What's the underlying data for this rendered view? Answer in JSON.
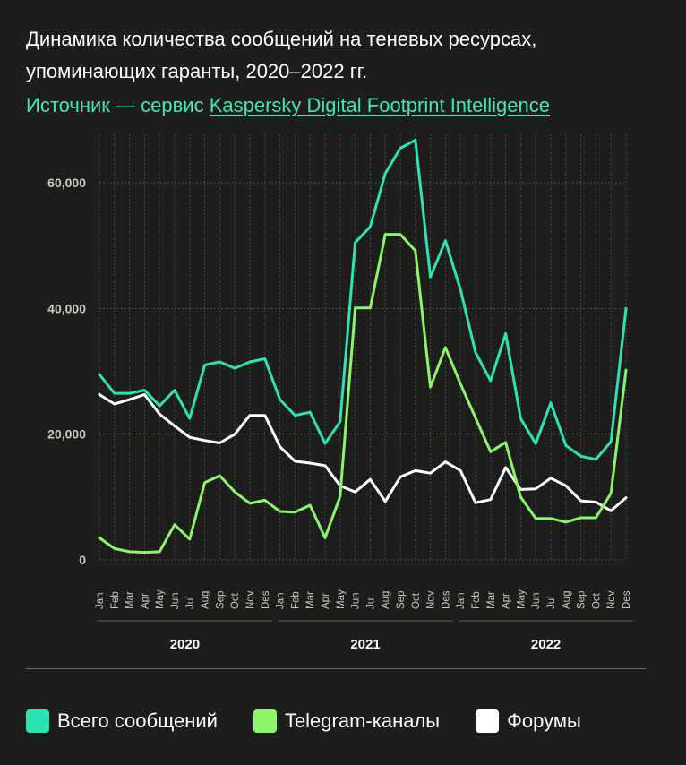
{
  "header": {
    "title": "Динамика количества сообщений на теневых ресурсах, упоминающих гаранты, 2020–2022 гг.",
    "source_prefix": "Источник — сервис ",
    "source_link": "Kaspersky Digital Footprint Intelligence"
  },
  "colors": {
    "total": "#2de3b3",
    "telegram": "#8cf56a",
    "forums": "#ffffff",
    "grid": "#7a7a76",
    "text_muted": "#c8c8c4"
  },
  "chart_data": {
    "type": "line",
    "title": "Динамика количества сообщений на теневых ресурсах, упоминающих гаранты, 2020–2022 гг.",
    "xlabel": "",
    "ylabel": "",
    "ylim": [
      0,
      68000
    ],
    "y_ticks": [
      0,
      20000,
      40000,
      60000
    ],
    "y_tick_labels": [
      "0",
      "20,000",
      "40,000",
      "60,000"
    ],
    "grid": true,
    "categories": [
      "Jan",
      "Feb",
      "Mar",
      "Apr",
      "May",
      "Jun",
      "Jul",
      "Aug",
      "Sep",
      "Oct",
      "Nov",
      "Des",
      "Jan",
      "Feb",
      "Mar",
      "Apr",
      "May",
      "Jun",
      "Jul",
      "Aug",
      "Sep",
      "Oct",
      "Nov",
      "Des",
      "Jan",
      "Feb",
      "Mar",
      "Apr",
      "May",
      "Jun",
      "Jul",
      "Aug",
      "Sep",
      "Oct",
      "Nov",
      "Des"
    ],
    "year_groups": [
      {
        "label": "2020",
        "start": 0,
        "end": 11
      },
      {
        "label": "2021",
        "start": 12,
        "end": 23
      },
      {
        "label": "2022",
        "start": 24,
        "end": 35
      }
    ],
    "series": [
      {
        "name": "Всего сообщений",
        "color_key": "total",
        "values": [
          29500,
          26500,
          26500,
          27000,
          24500,
          27000,
          22500,
          31000,
          31500,
          30500,
          31500,
          32000,
          25500,
          23000,
          23500,
          18500,
          22000,
          50500,
          53000,
          61500,
          65500,
          66800,
          45000,
          50800,
          43000,
          33000,
          28500,
          36000,
          22500,
          18500,
          25000,
          18200,
          16500,
          16000,
          18800,
          40000
        ]
      },
      {
        "name": "Telegram-каналы",
        "color_key": "telegram",
        "values": [
          3500,
          1800,
          1300,
          1200,
          1300,
          5600,
          3300,
          12300,
          13400,
          10800,
          9000,
          9500,
          7700,
          7600,
          8700,
          3500,
          10100,
          40100,
          40100,
          51800,
          51800,
          49200,
          27500,
          33800,
          28000,
          22600,
          17200,
          18700,
          10000,
          6600,
          6600,
          6000,
          6700,
          6700,
          10600,
          30200
        ]
      },
      {
        "name": "Форумы",
        "color_key": "forums",
        "values": [
          26300,
          24800,
          25500,
          26300,
          23200,
          21300,
          19500,
          19000,
          18600,
          20000,
          23000,
          23000,
          18000,
          15700,
          15400,
          15000,
          11800,
          10800,
          12800,
          9300,
          13200,
          14200,
          13800,
          15600,
          14200,
          9100,
          9600,
          14700,
          11200,
          11300,
          13000,
          11800,
          9400,
          9200,
          7800,
          9900
        ]
      }
    ]
  },
  "legend": {
    "items": [
      {
        "label": "Всего сообщений",
        "color_key": "total"
      },
      {
        "label": "Telegram-каналы",
        "color_key": "telegram"
      },
      {
        "label": "Форумы",
        "color_key": "forums"
      }
    ]
  }
}
